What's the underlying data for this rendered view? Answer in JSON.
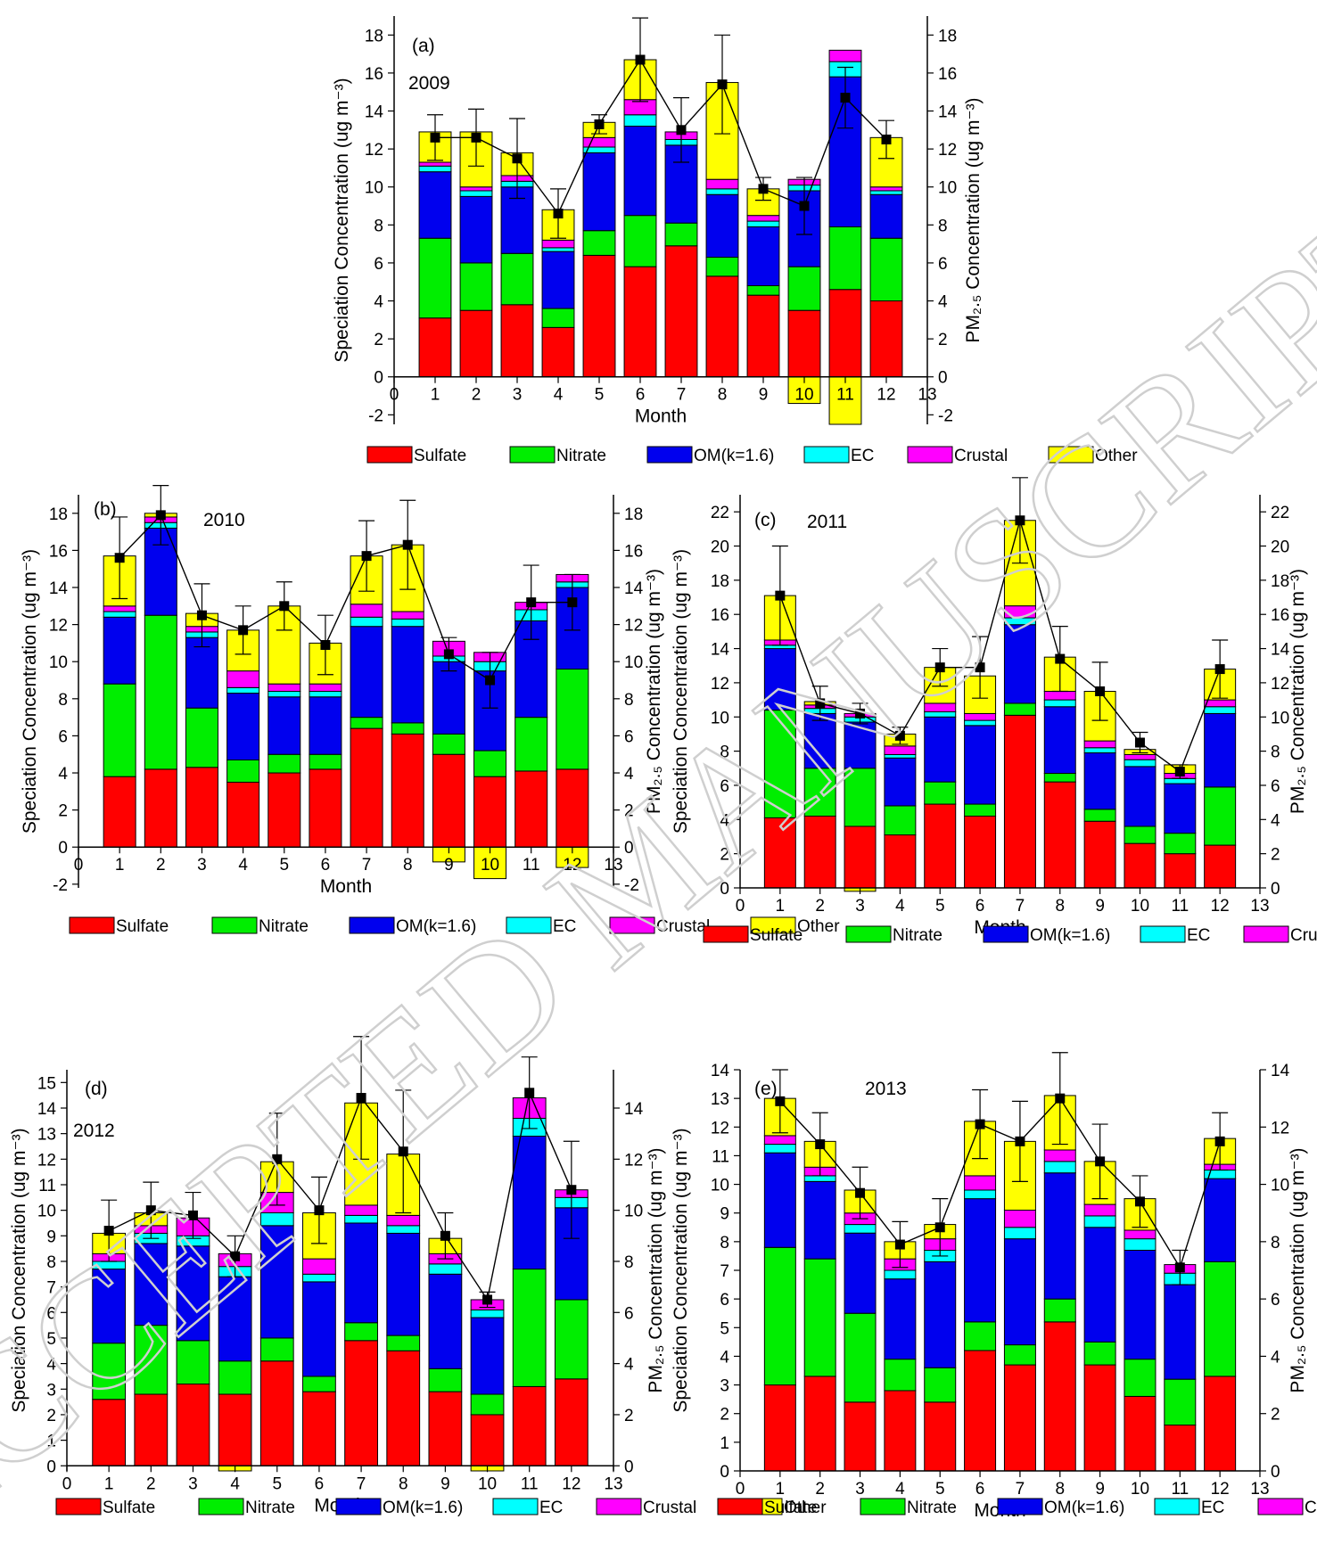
{
  "legend": {
    "items": [
      {
        "name": "Sulfate",
        "color": "#ff0000"
      },
      {
        "name": "Nitrate",
        "color": "#00ee00"
      },
      {
        "name": "OM(k=1.6)",
        "color": "#0000ee"
      },
      {
        "name": "EC",
        "color": "#00ffff"
      },
      {
        "name": "Crustal",
        "color": "#ff00ff"
      },
      {
        "name": "Other",
        "color": "#ffff00"
      }
    ]
  },
  "watermark": "ACCEPTED MANUSCRIPT",
  "chart_data": [
    {
      "type": "bar",
      "stacked": true,
      "panel_label": "(a)",
      "year_label": "2009",
      "xlabel": "Month",
      "ylabel": "Speciation Concentration (ug m⁻³)",
      "y2label": "PM₂.₅ Concentration (ug m⁻³)",
      "xlim": [
        0,
        13
      ],
      "xticks": [
        0,
        1,
        2,
        3,
        4,
        5,
        6,
        7,
        8,
        9,
        10,
        11,
        12,
        13
      ],
      "ylim": [
        -2.5,
        19
      ],
      "yticks": [
        -2,
        0,
        2,
        4,
        6,
        8,
        10,
        12,
        14,
        16,
        18
      ],
      "y2lim": [
        -2.5,
        19
      ],
      "y2ticks": [
        -2,
        0,
        2,
        4,
        6,
        8,
        10,
        12,
        14,
        16,
        18
      ],
      "categories": [
        1,
        2,
        3,
        4,
        5,
        6,
        7,
        8,
        9,
        10,
        11,
        12
      ],
      "series": [
        {
          "name": "Sulfate",
          "values": [
            3.1,
            3.5,
            3.8,
            2.6,
            6.4,
            5.8,
            6.9,
            5.3,
            4.3,
            3.5,
            4.6,
            4.0
          ]
        },
        {
          "name": "Nitrate",
          "values": [
            4.2,
            2.5,
            2.7,
            1.0,
            1.3,
            2.7,
            1.2,
            1.0,
            0.5,
            2.3,
            3.3,
            3.3
          ]
        },
        {
          "name": "OM(k=1.6)",
          "values": [
            3.5,
            3.5,
            3.5,
            3.0,
            4.1,
            4.7,
            4.1,
            3.3,
            3.1,
            4.0,
            7.9,
            2.3
          ]
        },
        {
          "name": "EC",
          "values": [
            0.3,
            0.3,
            0.3,
            0.2,
            0.3,
            0.6,
            0.3,
            0.3,
            0.3,
            0.3,
            0.8,
            0.2
          ]
        },
        {
          "name": "Crustal",
          "values": [
            0.2,
            0.2,
            0.3,
            0.4,
            0.5,
            0.8,
            0.4,
            0.5,
            0.3,
            0.3,
            0.6,
            0.2
          ]
        },
        {
          "name": "Other",
          "values": [
            1.6,
            2.9,
            1.2,
            1.6,
            0.8,
            2.1,
            0.0,
            5.1,
            1.4,
            -1.4,
            -2.5,
            2.6
          ]
        }
      ],
      "pm25": {
        "values": [
          12.6,
          12.6,
          11.5,
          8.6,
          13.3,
          16.7,
          13.0,
          15.4,
          9.9,
          9.0,
          14.7,
          12.5
        ],
        "errors": [
          1.2,
          1.5,
          2.1,
          1.3,
          0.5,
          2.2,
          1.7,
          2.6,
          0.6,
          1.5,
          1.6,
          1.0
        ]
      }
    },
    {
      "type": "bar",
      "stacked": true,
      "panel_label": "(b)",
      "year_label": "2010",
      "xlabel": "Month",
      "ylabel": "Speciation Concentration (ug m⁻³)",
      "y2label": "PM₂.₅ Concentration (ug m⁻³)",
      "xlim": [
        0,
        13
      ],
      "xticks": [
        0,
        1,
        2,
        3,
        4,
        5,
        6,
        7,
        8,
        9,
        10,
        11,
        12,
        13
      ],
      "ylim": [
        -2.2,
        19
      ],
      "yticks": [
        -2,
        0,
        2,
        4,
        6,
        8,
        10,
        12,
        14,
        16,
        18
      ],
      "y2lim": [
        -2.2,
        19
      ],
      "y2ticks": [
        -2,
        0,
        2,
        4,
        6,
        8,
        10,
        12,
        14,
        16,
        18
      ],
      "categories": [
        1,
        2,
        3,
        4,
        5,
        6,
        7,
        8,
        9,
        10,
        11,
        12
      ],
      "series": [
        {
          "name": "Sulfate",
          "values": [
            3.8,
            4.2,
            4.3,
            3.5,
            4.0,
            4.2,
            6.4,
            6.1,
            5.0,
            3.8,
            4.1,
            4.2
          ]
        },
        {
          "name": "Nitrate",
          "values": [
            5.0,
            8.3,
            3.2,
            1.2,
            1.0,
            0.8,
            0.6,
            0.6,
            1.1,
            1.4,
            2.9,
            5.4
          ]
        },
        {
          "name": "OM(k=1.6)",
          "values": [
            3.6,
            4.7,
            3.8,
            3.6,
            3.1,
            3.1,
            4.9,
            5.2,
            3.9,
            4.3,
            5.2,
            4.4
          ]
        },
        {
          "name": "EC",
          "values": [
            0.3,
            0.3,
            0.3,
            0.3,
            0.3,
            0.3,
            0.5,
            0.4,
            0.3,
            0.5,
            0.6,
            0.3
          ]
        },
        {
          "name": "Crustal",
          "values": [
            0.3,
            0.3,
            0.3,
            0.9,
            0.4,
            0.4,
            0.7,
            0.4,
            0.8,
            0.5,
            0.4,
            0.4
          ]
        },
        {
          "name": "Other",
          "values": [
            2.7,
            0.2,
            0.7,
            2.2,
            4.2,
            2.2,
            2.6,
            3.6,
            -0.8,
            -1.7,
            0.0,
            -1.1
          ]
        }
      ],
      "pm25": {
        "values": [
          15.6,
          17.9,
          12.5,
          11.7,
          13.0,
          10.9,
          15.7,
          16.3,
          10.4,
          9.0,
          13.2,
          13.2
        ],
        "errors": [
          2.2,
          1.6,
          1.7,
          1.3,
          1.3,
          1.6,
          1.9,
          2.4,
          0.9,
          1.5,
          2.0,
          1.5
        ]
      }
    },
    {
      "type": "bar",
      "stacked": true,
      "panel_label": "(c)",
      "year_label": "2011",
      "xlabel": "Month",
      "ylabel": "Speciation Concentration (ug m⁻³)",
      "y2label": "PM₂.₅ Concentration (ug m⁻³)",
      "xlim": [
        0,
        13
      ],
      "xticks": [
        0,
        1,
        2,
        3,
        4,
        5,
        6,
        7,
        8,
        9,
        10,
        11,
        12,
        13
      ],
      "ylim": [
        0,
        23
      ],
      "yticks": [
        0,
        2,
        4,
        6,
        8,
        10,
        12,
        14,
        16,
        18,
        20,
        22
      ],
      "y2lim": [
        0,
        23
      ],
      "y2ticks": [
        0,
        2,
        4,
        6,
        8,
        10,
        12,
        14,
        16,
        18,
        20,
        22
      ],
      "categories": [
        1,
        2,
        3,
        4,
        5,
        6,
        7,
        8,
        9,
        10,
        11,
        12
      ],
      "series": [
        {
          "name": "Sulfate",
          "values": [
            4.1,
            4.2,
            3.6,
            3.1,
            4.9,
            4.2,
            10.1,
            6.2,
            3.9,
            2.6,
            2.0,
            2.5
          ]
        },
        {
          "name": "Nitrate",
          "values": [
            6.3,
            2.8,
            3.4,
            1.7,
            1.3,
            0.7,
            0.7,
            0.5,
            0.7,
            1.0,
            1.2,
            3.4
          ]
        },
        {
          "name": "OM(k=1.6)",
          "values": [
            3.6,
            3.2,
            2.7,
            2.8,
            3.8,
            4.6,
            4.6,
            3.9,
            3.3,
            3.5,
            2.9,
            4.3
          ]
        },
        {
          "name": "EC",
          "values": [
            0.2,
            0.3,
            0.3,
            0.2,
            0.3,
            0.3,
            0.4,
            0.4,
            0.3,
            0.4,
            0.3,
            0.4
          ]
        },
        {
          "name": "Crustal",
          "values": [
            0.3,
            0.2,
            0.2,
            0.5,
            0.5,
            0.4,
            0.7,
            0.5,
            0.4,
            0.3,
            0.3,
            0.4
          ]
        },
        {
          "name": "Other",
          "values": [
            2.6,
            0.2,
            -0.2,
            0.7,
            2.1,
            2.2,
            5.0,
            2.0,
            2.9,
            0.3,
            0.5,
            1.8
          ]
        }
      ],
      "pm25": {
        "values": [
          17.1,
          10.8,
          10.2,
          8.9,
          12.9,
          12.9,
          21.5,
          13.4,
          11.5,
          8.5,
          6.8,
          12.8
        ],
        "errors": [
          2.9,
          1.0,
          0.6,
          0.5,
          1.1,
          1.8,
          2.5,
          1.9,
          1.7,
          0.6,
          0.4,
          1.7
        ]
      }
    },
    {
      "type": "bar",
      "stacked": true,
      "panel_label": "(d)",
      "year_label": "2012",
      "xlabel": "Month",
      "ylabel": "Speciation Concentration (ug m⁻³)",
      "y2label": "PM₂.₅ Concentration (ug m⁻³)",
      "xlim": [
        0,
        13
      ],
      "xticks": [
        0,
        1,
        2,
        3,
        4,
        5,
        6,
        7,
        8,
        9,
        10,
        11,
        12,
        13
      ],
      "ylim": [
        -0.2,
        15.5
      ],
      "yticks": [
        0,
        1,
        2,
        3,
        4,
        5,
        6,
        7,
        8,
        9,
        10,
        11,
        12,
        13,
        14,
        15
      ],
      "y2lim": [
        -0.2,
        15.5
      ],
      "y2ticks": [
        0,
        2,
        4,
        6,
        8,
        10,
        12,
        14
      ],
      "categories": [
        1,
        2,
        3,
        4,
        5,
        6,
        7,
        8,
        9,
        10,
        11,
        12
      ],
      "series": [
        {
          "name": "Sulfate",
          "values": [
            2.6,
            2.8,
            3.2,
            2.8,
            4.1,
            2.9,
            4.9,
            4.5,
            2.9,
            2.0,
            3.1,
            3.4
          ]
        },
        {
          "name": "Nitrate",
          "values": [
            2.2,
            2.7,
            1.7,
            1.3,
            0.9,
            0.6,
            0.7,
            0.6,
            0.9,
            0.8,
            4.6,
            3.1
          ]
        },
        {
          "name": "OM(k=1.6)",
          "values": [
            2.9,
            3.2,
            3.7,
            3.3,
            4.4,
            3.7,
            3.9,
            4.0,
            3.7,
            3.0,
            5.2,
            3.6
          ]
        },
        {
          "name": "EC",
          "values": [
            0.3,
            0.4,
            0.4,
            0.4,
            0.5,
            0.3,
            0.3,
            0.3,
            0.4,
            0.3,
            0.7,
            0.4
          ]
        },
        {
          "name": "Crustal",
          "values": [
            0.3,
            0.3,
            0.7,
            0.5,
            0.8,
            0.6,
            0.4,
            0.4,
            0.4,
            0.4,
            0.8,
            0.3
          ]
        },
        {
          "name": "Other",
          "values": [
            0.8,
            0.5,
            0.0,
            -0.2,
            1.2,
            1.8,
            4.0,
            2.4,
            0.6,
            -0.2,
            0.0,
            0.0
          ]
        }
      ],
      "pm25": {
        "values": [
          9.2,
          10.0,
          9.8,
          8.2,
          12.0,
          10.0,
          14.4,
          12.3,
          9.0,
          6.5,
          14.6,
          10.8
        ],
        "errors": [
          1.2,
          1.1,
          0.9,
          0.8,
          1.8,
          1.3,
          2.4,
          2.4,
          0.9,
          0.3,
          1.4,
          1.9
        ]
      }
    },
    {
      "type": "bar",
      "stacked": true,
      "panel_label": "(e)",
      "year_label": "2013",
      "xlabel": "Month",
      "ylabel": "Speciation Concentration (ug m⁻³)",
      "y2label": "PM₂.₅ Concentration (ug m⁻³)",
      "xlim": [
        0,
        13
      ],
      "xticks": [
        0,
        1,
        2,
        3,
        4,
        5,
        6,
        7,
        8,
        9,
        10,
        11,
        12,
        13
      ],
      "ylim": [
        0,
        14
      ],
      "yticks": [
        0,
        1,
        2,
        3,
        4,
        5,
        6,
        7,
        8,
        9,
        10,
        11,
        12,
        13,
        14
      ],
      "y2lim": [
        0,
        14
      ],
      "y2ticks": [
        0,
        2,
        4,
        6,
        8,
        10,
        12,
        14
      ],
      "categories": [
        1,
        2,
        3,
        4,
        5,
        6,
        7,
        8,
        9,
        10,
        11,
        12
      ],
      "series": [
        {
          "name": "Sulfate",
          "values": [
            3.0,
            3.3,
            2.4,
            2.8,
            2.4,
            4.2,
            3.7,
            5.2,
            3.7,
            2.6,
            1.6,
            3.3
          ]
        },
        {
          "name": "Nitrate",
          "values": [
            4.8,
            4.1,
            3.1,
            1.1,
            1.2,
            1.0,
            0.7,
            0.8,
            0.8,
            1.3,
            1.6,
            4.0
          ]
        },
        {
          "name": "OM(k=1.6)",
          "values": [
            3.3,
            2.7,
            2.8,
            2.8,
            3.7,
            4.3,
            3.7,
            4.4,
            4.0,
            3.8,
            3.3,
            2.9
          ]
        },
        {
          "name": "EC",
          "values": [
            0.3,
            0.2,
            0.3,
            0.3,
            0.4,
            0.3,
            0.4,
            0.4,
            0.4,
            0.4,
            0.4,
            0.3
          ]
        },
        {
          "name": "Crustal",
          "values": [
            0.3,
            0.3,
            0.4,
            0.4,
            0.4,
            0.5,
            0.6,
            0.4,
            0.4,
            0.3,
            0.3,
            0.2
          ]
        },
        {
          "name": "Other",
          "values": [
            1.3,
            0.9,
            0.8,
            0.6,
            0.5,
            1.9,
            2.4,
            1.9,
            1.5,
            1.1,
            0.0,
            0.9
          ]
        }
      ],
      "pm25": {
        "values": [
          12.9,
          11.4,
          9.7,
          7.9,
          8.5,
          12.1,
          11.5,
          13.0,
          10.8,
          9.4,
          7.1,
          11.5
        ],
        "errors": [
          1.1,
          1.1,
          0.9,
          0.8,
          1.0,
          1.2,
          1.4,
          1.6,
          1.3,
          0.9,
          0.6,
          1.0
        ]
      }
    }
  ]
}
